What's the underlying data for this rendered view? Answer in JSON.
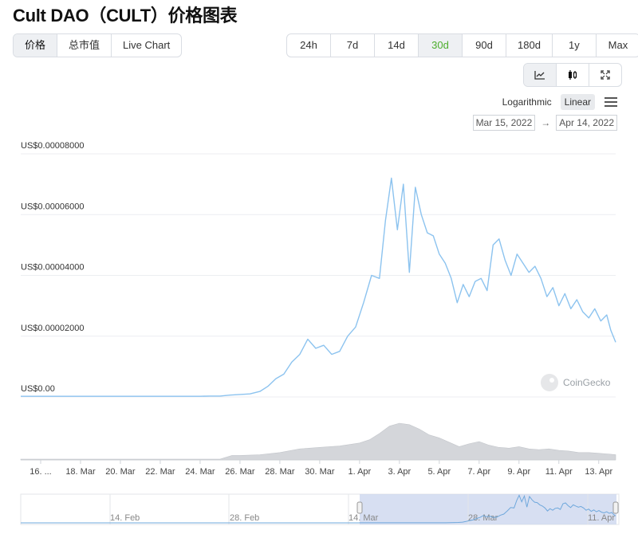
{
  "page": {
    "title": "Cult DAO（CULT）价格图表"
  },
  "tabs": [
    "价格",
    "总市值",
    "Live Chart"
  ],
  "ranges": [
    "24h",
    "7d",
    "14d",
    "30d",
    "90d",
    "180d",
    "1y",
    "Max"
  ],
  "active_range": "30d",
  "chart_icons": [
    "line-chart-icon",
    "candlestick-icon",
    "fullscreen-icon"
  ],
  "scale": {
    "log_label": "Logarithmic",
    "linear_label": "Linear",
    "selected": "Linear"
  },
  "date_range": {
    "from": "Mar 15, 2022",
    "to": "Apr 14, 2022"
  },
  "watermark": "CoinGecko",
  "colors": {
    "line": "#8cc3ef",
    "volume": "#d4d6da",
    "navigator_fill": "#c9d4ee",
    "range_green": "#4cae2c"
  },
  "chart_data": {
    "type": "line",
    "y_ticks": [
      0,
      2e-05,
      4e-05,
      6e-05,
      8e-05
    ],
    "y_tick_labels": [
      "US$0.00",
      "US$0.00002000",
      "US$0.00004000",
      "US$0.00006000",
      "US$0.00008000"
    ],
    "ylim": [
      0,
      8e-05
    ],
    "x_tick_labels": [
      "16. ...",
      "18. Mar",
      "20. Mar",
      "22. Mar",
      "24. Mar",
      "26. Mar",
      "28. Mar",
      "30. Mar",
      "1. Apr",
      "3. Apr",
      "5. Apr",
      "7. Apr",
      "9. Apr",
      "11. Apr",
      "13. Apr"
    ],
    "x_tick_days": [
      1,
      3,
      5,
      7,
      9,
      11,
      13,
      15,
      17,
      19,
      21,
      23,
      25,
      27,
      29
    ],
    "x_start_date": "Mar 15, 2022",
    "grid": true,
    "price_series": {
      "name": "Price",
      "days_since_mar15": [
        0,
        1,
        2,
        3,
        4,
        5,
        6,
        7,
        8,
        9,
        9.5,
        10,
        10.5,
        11,
        11.5,
        12,
        12.4,
        12.8,
        13.2,
        13.6,
        14,
        14.4,
        14.8,
        15.2,
        15.6,
        16,
        16.4,
        16.8,
        17.2,
        17.6,
        18,
        18.3,
        18.6,
        18.9,
        19.2,
        19.5,
        19.8,
        20.1,
        20.4,
        20.7,
        21,
        21.3,
        21.6,
        21.9,
        22.2,
        22.5,
        22.8,
        23.1,
        23.4,
        23.7,
        24,
        24.3,
        24.6,
        24.9,
        25.2,
        25.5,
        25.8,
        26.1,
        26.4,
        26.7,
        27,
        27.3,
        27.6,
        27.9,
        28.2,
        28.5,
        28.8,
        29.1,
        29.4,
        29.6,
        29.85
      ],
      "values": [
        2e-07,
        2e-07,
        2e-07,
        2e-07,
        2e-07,
        2e-07,
        2e-07,
        2e-07,
        2e-07,
        2e-07,
        3e-07,
        3e-07,
        6e-07,
        8e-07,
        1e-06,
        1.8e-06,
        3.5e-06,
        6e-06,
        7.5e-06,
        1.15e-05,
        1.4e-05,
        1.9e-05,
        1.6e-05,
        1.7e-05,
        1.4e-05,
        1.5e-05,
        2e-05,
        2.3e-05,
        3.1e-05,
        4e-05,
        3.9e-05,
        5.8e-05,
        7.2e-05,
        5.5e-05,
        7e-05,
        4.1e-05,
        6.9e-05,
        6e-05,
        5.4e-05,
        5.3e-05,
        4.7e-05,
        4.4e-05,
        3.9e-05,
        3.1e-05,
        3.7e-05,
        3.3e-05,
        3.8e-05,
        3.9e-05,
        3.5e-05,
        5e-05,
        5.2e-05,
        4.5e-05,
        4e-05,
        4.7e-05,
        4.4e-05,
        4.1e-05,
        4.3e-05,
        3.9e-05,
        3.3e-05,
        3.6e-05,
        3e-05,
        3.4e-05,
        2.9e-05,
        3.2e-05,
        2.8e-05,
        2.6e-05,
        2.9e-05,
        2.5e-05,
        2.7e-05,
        2.2e-05,
        1.8e-05
      ]
    },
    "volume_series": {
      "name": "Volume",
      "days_since_mar15": [
        0,
        10,
        10.6,
        11,
        12,
        13,
        14,
        15,
        16,
        17,
        17.5,
        18,
        18.5,
        19,
        19.5,
        20,
        20.5,
        21,
        21.5,
        22,
        22.5,
        23,
        23.5,
        24,
        24.5,
        25,
        25.5,
        26,
        26.5,
        27,
        27.5,
        28,
        28.5,
        29,
        29.5,
        29.85
      ],
      "values": [
        0.02,
        0.02,
        0.12,
        0.12,
        0.14,
        0.2,
        0.3,
        0.34,
        0.38,
        0.46,
        0.55,
        0.72,
        0.92,
        1.0,
        0.96,
        0.84,
        0.68,
        0.6,
        0.48,
        0.36,
        0.44,
        0.5,
        0.4,
        0.34,
        0.32,
        0.36,
        0.3,
        0.28,
        0.3,
        0.26,
        0.24,
        0.2,
        0.2,
        0.18,
        0.16,
        0.14
      ]
    },
    "navigator": {
      "labels": [
        "14. Feb",
        "28. Feb",
        "14. Mar",
        "28. Mar",
        "11. Apr"
      ]
    }
  }
}
